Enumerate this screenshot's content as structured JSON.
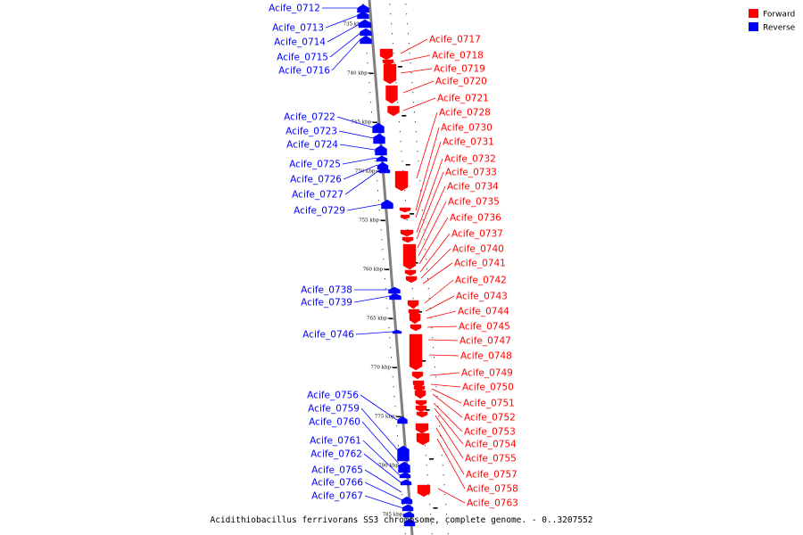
{
  "caption": "Acidithiobacillus ferrivorans SS3 chromosome, complete genome. - 0..3207552",
  "legend": [
    {
      "label": "Forward",
      "color": "#ff0000"
    },
    {
      "label": "Reverse",
      "color": "#0000ff"
    }
  ],
  "colors": {
    "forward": "#ff0000",
    "reverse": "#0000ff",
    "backbone": "#808080"
  },
  "scale_ticks": [
    "735 kbp",
    "740 kbp",
    "745 kbp",
    "750 kbp",
    "755 kbp",
    "760 kbp",
    "765 kbp",
    "770 kbp",
    "775 kbp",
    "780 kbp",
    "785 kbp"
  ],
  "reverse_genes": [
    "Acife_0712",
    "Acife_0713",
    "Acife_0714",
    "Acife_0715",
    "Acife_0716",
    "Acife_0722",
    "Acife_0723",
    "Acife_0724",
    "Acife_0725",
    "Acife_0726",
    "Acife_0727",
    "Acife_0729",
    "Acife_0738",
    "Acife_0739",
    "Acife_0746",
    "Acife_0756",
    "Acife_0759",
    "Acife_0760",
    "Acife_0761",
    "Acife_0762",
    "Acife_0765",
    "Acife_0766",
    "Acife_0767"
  ],
  "forward_genes": [
    "Acife_0717",
    "Acife_0718",
    "Acife_0719",
    "Acife_0720",
    "Acife_0721",
    "Acife_0728",
    "Acife_0730",
    "Acife_0731",
    "Acife_0732",
    "Acife_0733",
    "Acife_0734",
    "Acife_0735",
    "Acife_0736",
    "Acife_0737",
    "Acife_0740",
    "Acife_0741",
    "Acife_0742",
    "Acife_0743",
    "Acife_0744",
    "Acife_0745",
    "Acife_0747",
    "Acife_0748",
    "Acife_0749",
    "Acife_0750",
    "Acife_0751",
    "Acife_0752",
    "Acife_0753",
    "Acife_0754",
    "Acife_0755",
    "Acife_0757",
    "Acife_0758",
    "Acife_0763"
  ]
}
